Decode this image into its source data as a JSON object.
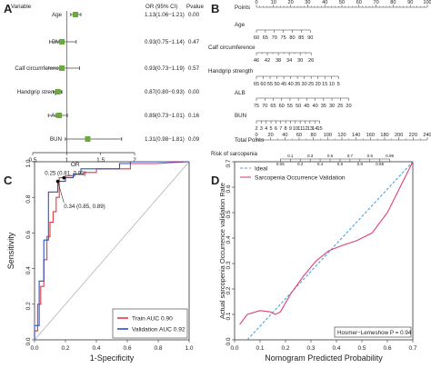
{
  "chart_data": [
    {
      "type": "forest",
      "panel_label": "A",
      "columns": {
        "variable": "Variable",
        "or": "OR (95% CI)",
        "pvalue": "Pvalue"
      },
      "rows": [
        {
          "variable": "Age",
          "or": 1.13,
          "lo": 1.06,
          "hi": 1.21,
          "or_text": "1.13(1.06−1.21)",
          "p": "0.00"
        },
        {
          "variable": "BMI",
          "or": 0.93,
          "lo": 0.75,
          "hi": 1.14,
          "or_text": "0.93(0.75−1.14)",
          "p": "0.47"
        },
        {
          "variable": "Calf circumference",
          "or": 0.93,
          "lo": 0.73,
          "hi": 1.19,
          "or_text": "0.93(0.73−1.19)",
          "p": "0.57"
        },
        {
          "variable": "Handgrip strength",
          "or": 0.87,
          "lo": 0.8,
          "hi": 0.93,
          "or_text": "0.87(0.80−0.93)",
          "p": "0.00"
        },
        {
          "variable": "ALB",
          "or": 0.89,
          "lo": 0.73,
          "hi": 1.01,
          "or_text": "0.89(0.73−1.01)",
          "p": "0.16"
        },
        {
          "variable": "BUN",
          "or": 1.31,
          "lo": 0.98,
          "hi": 1.81,
          "or_text": "1.31(0.98−1.81)",
          "p": "0.09"
        }
      ],
      "xlim": [
        0.5,
        2
      ],
      "x_ticks": [
        "0.5",
        "1",
        "1.5",
        "2"
      ],
      "xlabel": "OR",
      "marker_color": "#6aaa3a"
    },
    {
      "type": "nomogram",
      "panel_label": "B",
      "scales": [
        {
          "name": "Points",
          "min": 0,
          "max": 100,
          "labels": [
            "0",
            "10",
            "20",
            "30",
            "40",
            "50",
            "60",
            "70",
            "80",
            "90",
            "100"
          ]
        },
        {
          "name": "Age",
          "labels": [
            "60",
            "65",
            "70",
            "75",
            "80",
            "85",
            "90"
          ]
        },
        {
          "name": "Calf circumference",
          "labels": [
            "46",
            "42",
            "38",
            "34",
            "30",
            "26"
          ]
        },
        {
          "name": "Handgrip strength",
          "labels": [
            "65",
            "60",
            "55",
            "50",
            "45",
            "40",
            "35",
            "30",
            "25",
            "20",
            "15",
            "10",
            "5"
          ]
        },
        {
          "name": "ALB",
          "labels": [
            "75",
            "70",
            "65",
            "60",
            "55",
            "50",
            "45",
            "40",
            "35",
            "30",
            "25",
            "20"
          ]
        },
        {
          "name": "BUN",
          "labels": [
            "2",
            "3",
            "4",
            "5",
            "6",
            "7",
            "8",
            "9",
            "10",
            "11",
            "12",
            "13",
            "14",
            "15"
          ]
        },
        {
          "name": "Total Points",
          "min": 0,
          "max": 240,
          "labels": [
            "0",
            "20",
            "40",
            "60",
            "80",
            "100",
            "120",
            "140",
            "160",
            "180",
            "200",
            "220",
            "240"
          ]
        },
        {
          "name": "Risk of sarcopenia",
          "labels": [
            "0.05",
            "0.1",
            "0.2",
            "0.3",
            "0.4",
            "0.5",
            "0.6",
            "0.7",
            "0.8",
            "0.9",
            "0.95",
            "0.99"
          ]
        }
      ]
    },
    {
      "type": "line",
      "panel_label": "C",
      "xlabel": "1-Specificity",
      "ylabel": "Sensitivity",
      "xlim": [
        0,
        1
      ],
      "ylim": [
        0,
        1
      ],
      "x_ticks": [
        "0.0",
        "0.2",
        "0.4",
        "0.6",
        "0.8",
        "1.0"
      ],
      "y_ticks": [
        "0.0",
        "0.2",
        "0.4",
        "0.6",
        "0.8",
        "1.0"
      ],
      "annotations": [
        {
          "text": "0.25 (0.81, 0.91)",
          "x": 0.19,
          "y": 0.91
        },
        {
          "text": "0.34 (0.85, 0.89)",
          "x": 0.15,
          "y": 0.74
        }
      ],
      "legend": "bottom-right",
      "series": [
        {
          "name": "Train AUC 0.90",
          "color": "#e63946",
          "x": [
            0,
            0,
            0.02,
            0.02,
            0.04,
            0.04,
            0.06,
            0.06,
            0.08,
            0.08,
            0.1,
            0.1,
            0.12,
            0.12,
            0.14,
            0.14,
            0.16,
            0.16,
            0.2,
            0.2,
            0.26,
            0.26,
            0.32,
            0.32,
            0.4,
            0.4,
            0.5,
            0.62,
            0.62,
            0.78,
            1
          ],
          "y": [
            0,
            0.05,
            0.05,
            0.2,
            0.2,
            0.3,
            0.3,
            0.45,
            0.45,
            0.58,
            0.58,
            0.66,
            0.66,
            0.72,
            0.72,
            0.8,
            0.8,
            0.91,
            0.91,
            0.92,
            0.92,
            0.93,
            0.93,
            0.94,
            0.94,
            0.96,
            0.96,
            0.96,
            0.99,
            0.99,
            1
          ]
        },
        {
          "name": "Validation AUC 0.92",
          "color": "#2b50c8",
          "x": [
            0,
            0,
            0.03,
            0.03,
            0.06,
            0.06,
            0.09,
            0.09,
            0.15,
            0.15,
            0.2,
            0.2,
            0.25,
            0.25,
            0.3,
            0.3,
            0.55,
            0.55,
            0.62,
            0.62,
            1
          ],
          "y": [
            0,
            0.08,
            0.08,
            0.33,
            0.33,
            0.56,
            0.56,
            0.83,
            0.83,
            0.89,
            0.89,
            0.91,
            0.91,
            0.93,
            0.93,
            0.96,
            0.96,
            0.99,
            0.99,
            1,
            1
          ]
        }
      ]
    },
    {
      "type": "line",
      "panel_label": "D",
      "xlabel": "Nomogram Predicted Probability",
      "ylabel": "Actual sarcopenia Occurrence validation Rate",
      "xlim": [
        0,
        0.7
      ],
      "ylim": [
        0,
        0.7
      ],
      "x_ticks": [
        "0.0",
        "0.1",
        "0.2",
        "0.3",
        "0.4",
        "0.5",
        "0.6",
        "0.7"
      ],
      "y_ticks": [
        "0.0",
        "0.1",
        "0.2",
        "0.3",
        "0.4",
        "0.5",
        "0.6",
        "0.7"
      ],
      "legend": "top-left",
      "annotation": "Hosmer−Lemeshow  P = 0.94",
      "series": [
        {
          "name": "Ideal",
          "color": "#4aa3df",
          "dashed": true,
          "x": [
            0.05,
            0.7
          ],
          "y": [
            0.0,
            0.7
          ]
        },
        {
          "name": "Sarcopenia Occurrence Validation",
          "color": "#e0407a",
          "dashed": false,
          "x": [
            0.02,
            0.05,
            0.1,
            0.14,
            0.16,
            0.18,
            0.22,
            0.27,
            0.32,
            0.37,
            0.42,
            0.48,
            0.54,
            0.6,
            0.65,
            0.7
          ],
          "y": [
            0.06,
            0.1,
            0.115,
            0.11,
            0.1,
            0.11,
            0.18,
            0.25,
            0.31,
            0.35,
            0.37,
            0.39,
            0.42,
            0.5,
            0.6,
            0.7
          ]
        }
      ]
    }
  ]
}
